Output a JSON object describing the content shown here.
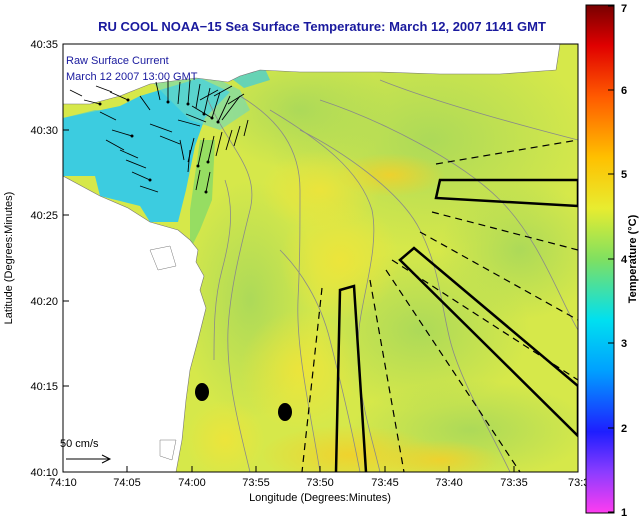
{
  "title": "RU COOL  NOAA−15  Sea Surface Temperature:  March 12, 2007 1141 GMT",
  "annotations": {
    "current_label": "Raw Surface Current",
    "current_time": "March 12 2007 13:00 GMT",
    "scale_label": "50 cm/s"
  },
  "axes": {
    "xlabel": "Longitude (Degrees:Minutes)",
    "ylabel": "Latitude (Degrees:Minutes)",
    "xticks": [
      "74:10",
      "74:05",
      "74:00",
      "73:55",
      "73:50",
      "73:45",
      "73:40",
      "73:35",
      "73:3"
    ],
    "yticks": [
      "40:35",
      "40:30",
      "40:25",
      "40:20",
      "40:15",
      "40:10"
    ]
  },
  "colorbar": {
    "label": "Temperature (°C)",
    "ticks": [
      "1",
      "2",
      "3",
      "4",
      "5",
      "6",
      "7"
    ],
    "range": [
      1,
      7
    ]
  },
  "colors": {
    "title": "#1a1a9e",
    "land": "#ffffff",
    "water_warm": "#e8e43c",
    "water_mid": "#a8dc58",
    "water_cool": "#3cc8e0",
    "markers": "#000000"
  }
}
